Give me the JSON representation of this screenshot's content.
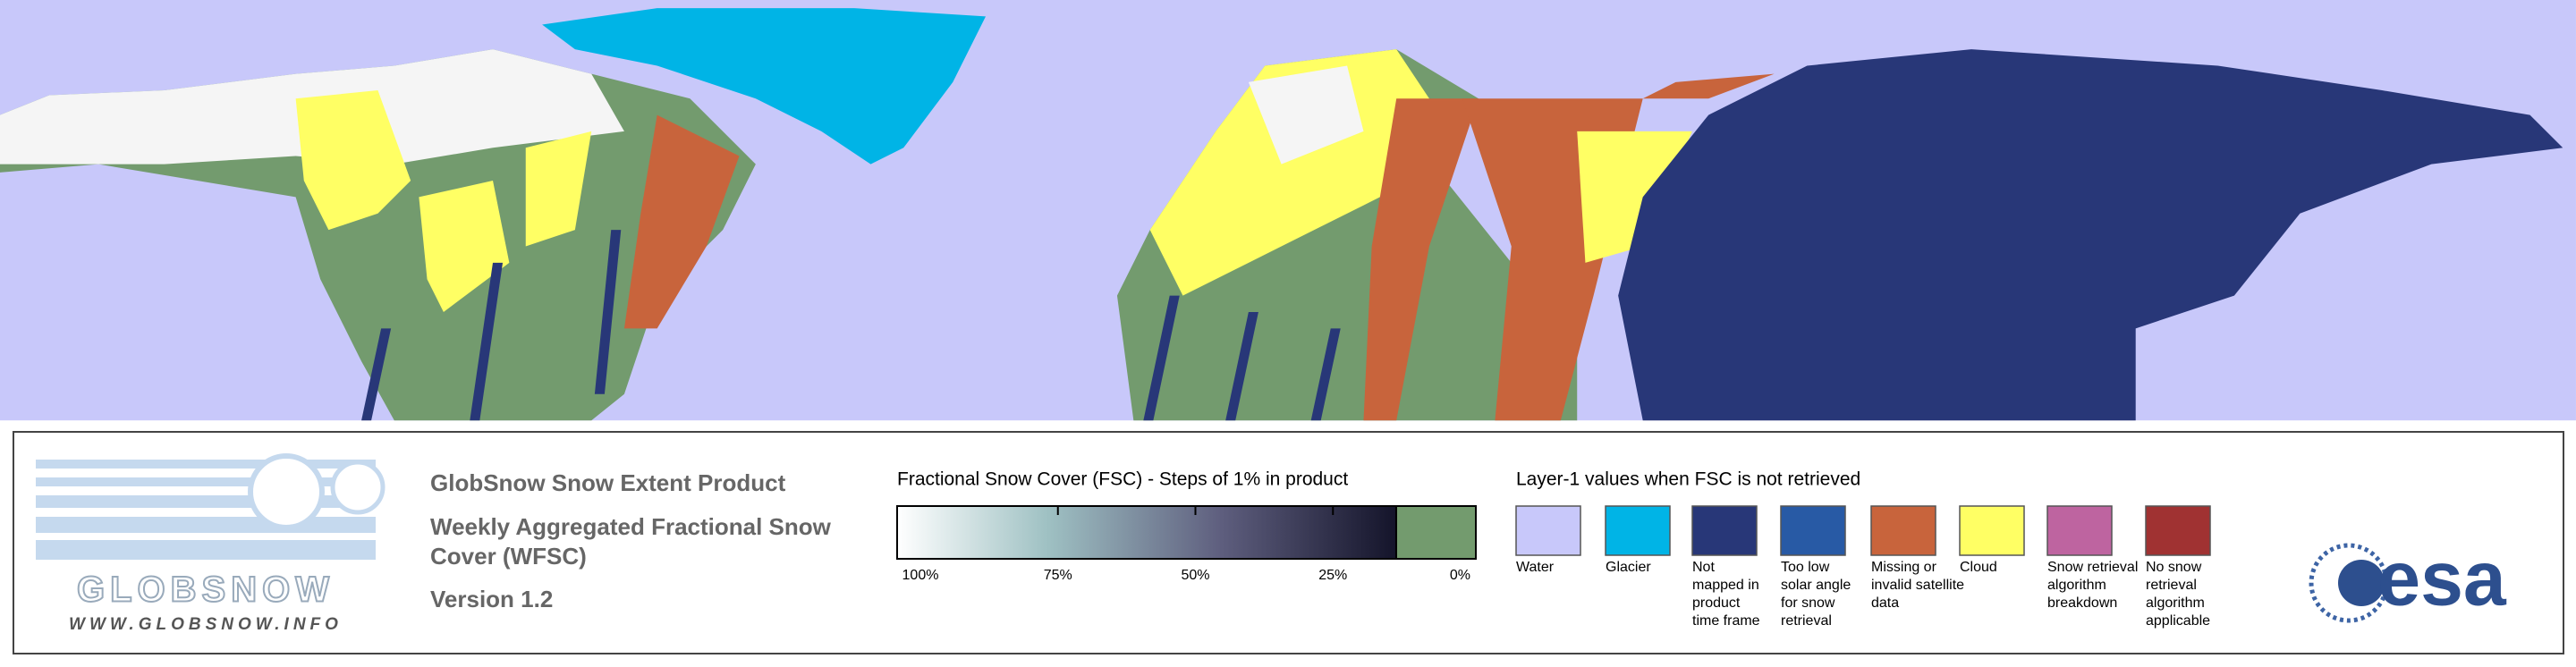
{
  "logo": {
    "name": "GLOBSNOW",
    "url": "WWW.GLOBSNOW.INFO"
  },
  "product": {
    "title": "GlobSnow Snow Extent Product",
    "subtitle_lines": [
      "Weekly Aggregated Fractional Snow",
      "Cover (WFSC)"
    ],
    "version": "Version 1.2"
  },
  "fsc_scale": {
    "title": "Fractional Snow Cover (FSC) - Steps of 1% in product",
    "tick_labels": [
      "100%",
      "75%",
      "50%",
      "25%",
      "0%"
    ],
    "zero_color": "#739b6e"
  },
  "layer1": {
    "title": "Layer-1 values when FSC is not retrieved",
    "items": [
      {
        "label_lines": [
          "Water"
        ],
        "color": "#c8c8fa"
      },
      {
        "label_lines": [
          "Glacier"
        ],
        "color": "#00b4e6"
      },
      {
        "label_lines": [
          "Not",
          "mapped in",
          "product",
          "time frame"
        ],
        "color": "#283778"
      },
      {
        "label_lines": [
          "Too low",
          "solar angle",
          "for snow",
          "retrieval"
        ],
        "color": "#285aa5"
      },
      {
        "label_lines": [
          "Missing or",
          "invalid satellite",
          "data"
        ],
        "color": "#c8643c"
      },
      {
        "label_lines": [
          "Cloud"
        ],
        "color": "#ffff64"
      },
      {
        "label_lines": [
          "Snow retrieval",
          "algorithm",
          "breakdown"
        ],
        "color": "#be64a0"
      },
      {
        "label_lines": [
          "No snow",
          "retrieval",
          "algorithm",
          "applicable"
        ],
        "color": "#a03232"
      }
    ]
  },
  "agency": "esa"
}
